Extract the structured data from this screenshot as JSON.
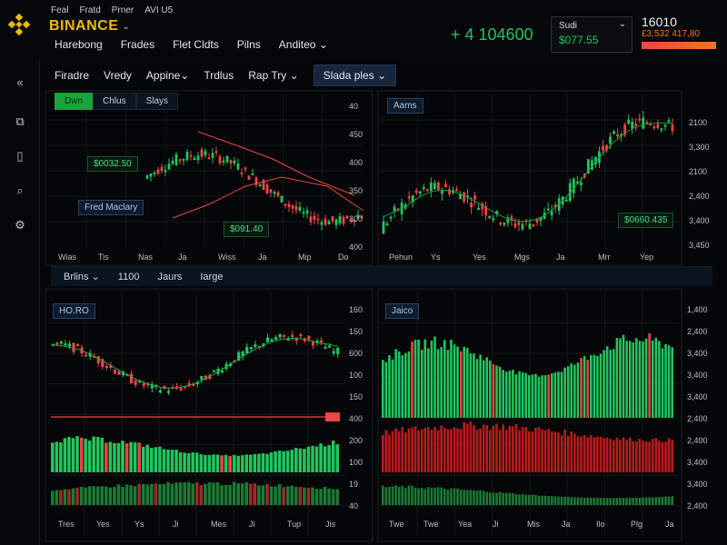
{
  "header": {
    "top_links": [
      "Feal",
      "Fratd",
      "Prner",
      "AVI U5"
    ],
    "brand": "BINANCE",
    "nav": [
      "Harebong",
      "Frades",
      "Flet Cldts",
      "Pilns",
      "Anditeo"
    ],
    "price": "+ 4 104600",
    "account": {
      "label": "Sudi",
      "value": "$077.55"
    },
    "ticker": {
      "top": "16010",
      "bottom": "£3,532 417,80"
    }
  },
  "rail": {
    "icons": [
      "collapse-icon",
      "layout-icon",
      "document-icon",
      "search-icon",
      "settings-icon"
    ],
    "glyphs": [
      "«",
      "⧉",
      "▯",
      "⌕",
      "⚙"
    ]
  },
  "subbar": {
    "items": [
      "Firadre",
      "Vredy",
      "Appine",
      "Trdlus",
      "Rap Try"
    ],
    "active": "Slada ples"
  },
  "chart_tabs": [
    "Dwn",
    "Chlus",
    "Slays"
  ],
  "panels": {
    "tl": {
      "tags": [
        "$0032.50",
        "Fred Maclary",
        "$091.40"
      ],
      "yaxis": [
        "40",
        "450",
        "400",
        "350",
        "300",
        "400"
      ],
      "xaxis": [
        "Wias",
        "Tis",
        "Nas",
        "Ja",
        "Wiss",
        "Ja",
        "Mip",
        "Do"
      ]
    },
    "tr": {
      "label": "Aams",
      "tag": "$0660.435",
      "yaxis": [
        "2100",
        "3,300",
        "2100",
        "2,400",
        "3,400",
        "3,450"
      ],
      "xaxis": [
        "Pehun",
        "Ys",
        "Yes",
        "Mgs",
        "Ja",
        "Mrr",
        "Yep"
      ]
    },
    "bl": {
      "label": "HO.RO",
      "yaxis": [
        "160",
        "150",
        "600",
        "100",
        "150",
        "400",
        "200",
        "100",
        "19",
        "40"
      ],
      "xaxis": [
        "Tres",
        "Yes",
        "Ys",
        "Ji",
        "Mes",
        "Ji",
        "Tup",
        "Jis"
      ]
    },
    "br": {
      "label": "Jaico",
      "yaxis": [
        "1,400",
        "2,400",
        "3,400",
        "3,400",
        "3,400",
        "2,400",
        "2,400",
        "3,400",
        "3,400",
        "2,400"
      ],
      "xaxis": [
        "Twe",
        "Twe",
        "Yea",
        "Ji",
        "Mis",
        "Ja",
        "Ilo",
        "Plg",
        "Ja"
      ]
    }
  },
  "midbar": {
    "items": [
      "Brlins",
      "1100",
      "Jaurs",
      "Iarge"
    ]
  },
  "colors": {
    "up": "#22c55e",
    "down": "#ef4444",
    "brand": "#f0b90b",
    "ma_red": "#ef4444",
    "ma_green": "#22a34a"
  }
}
